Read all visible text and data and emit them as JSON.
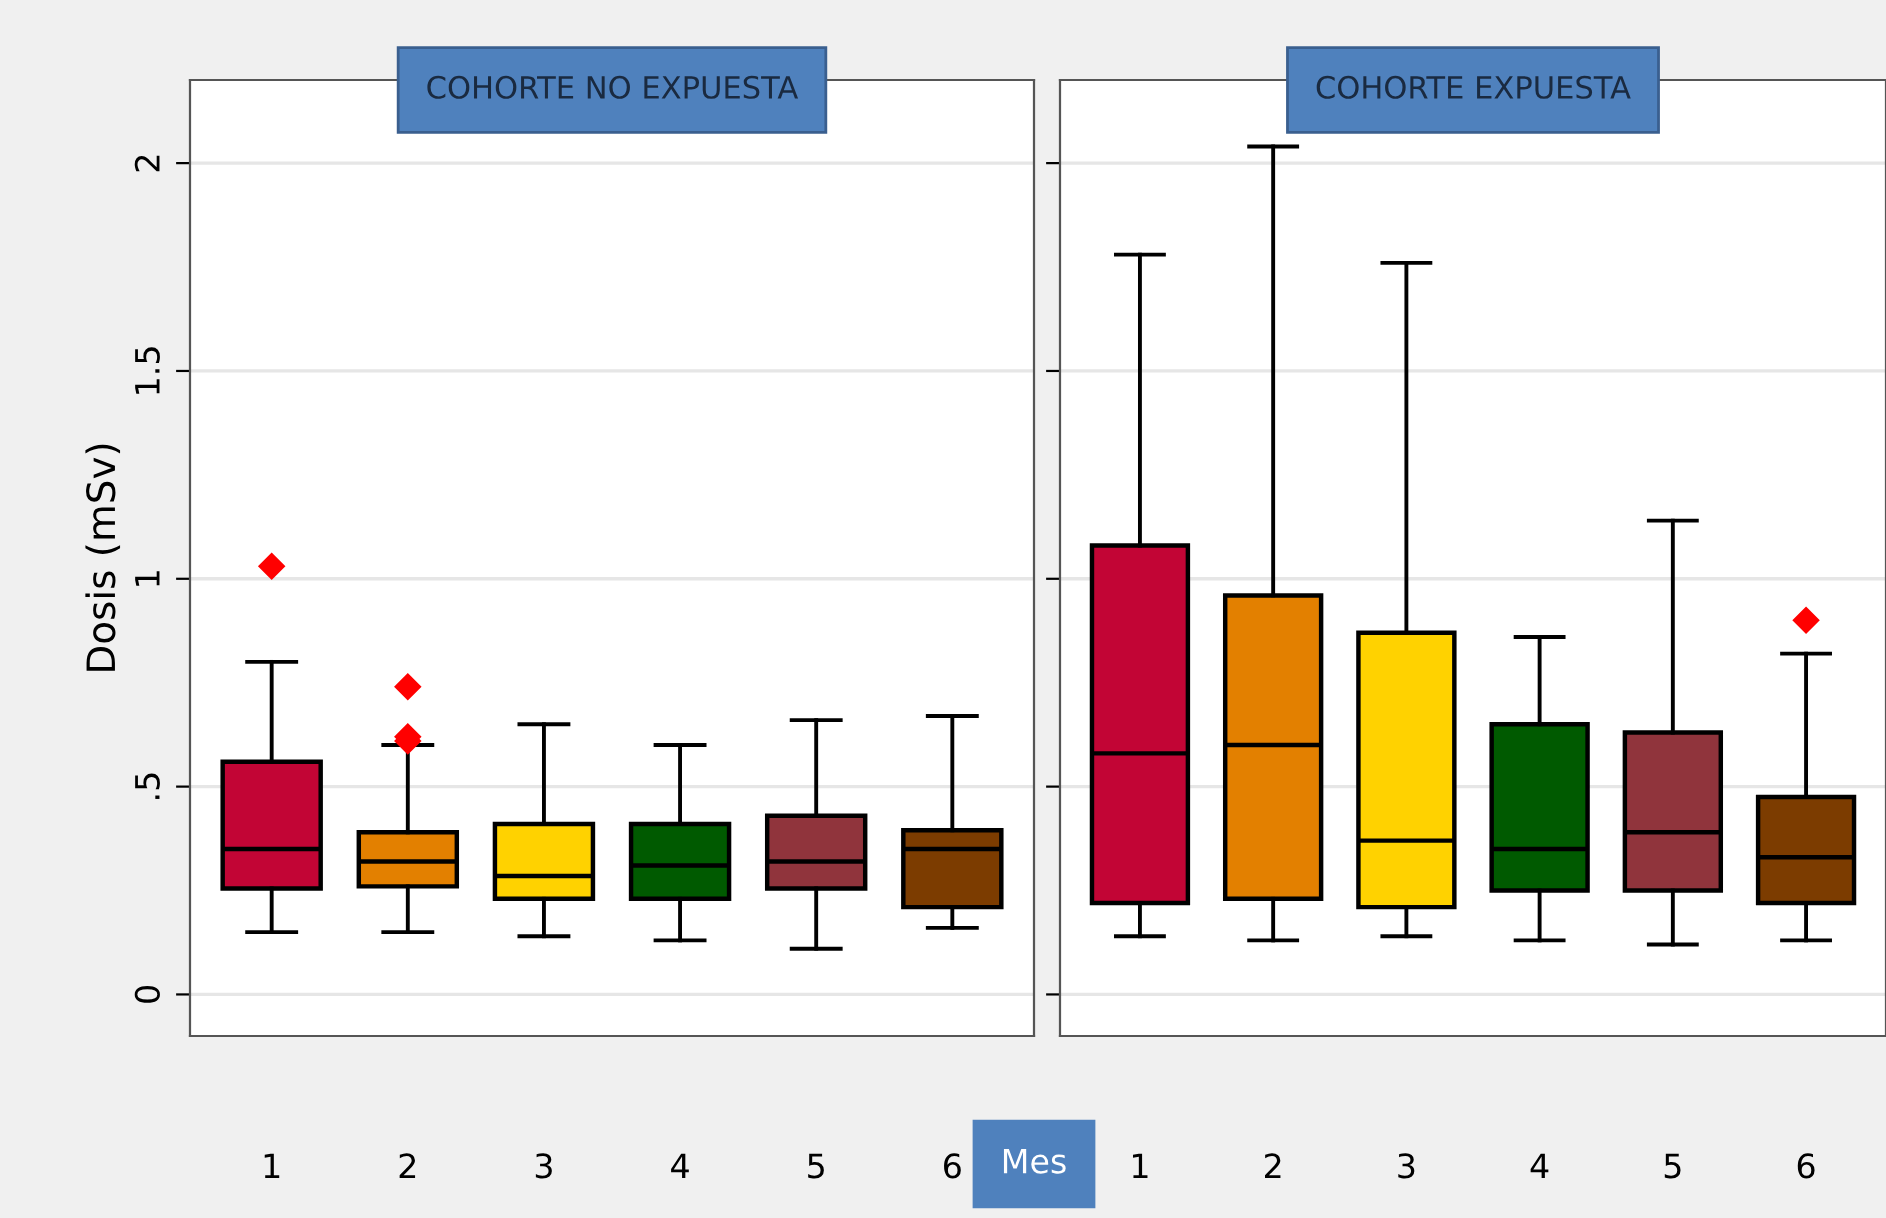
{
  "chart_data": [
    {
      "type": "box",
      "title": "COHORTE NO EXPUESTA",
      "ylabel": "Dosis (mSv)",
      "xlabel": "Mes",
      "categories": [
        "1",
        "2",
        "3",
        "4",
        "5",
        "6"
      ],
      "colors": [
        "#c20535",
        "#e38000",
        "#ffd200",
        "#005a00",
        "#90343c",
        "#7c3c00"
      ],
      "boxes": [
        {
          "low": 0.15,
          "q1": 0.255,
          "median": 0.35,
          "q3": 0.56,
          "high": 0.8,
          "outliers": [
            1.03
          ]
        },
        {
          "low": 0.15,
          "q1": 0.26,
          "median": 0.32,
          "q3": 0.39,
          "high": 0.6,
          "outliers": [
            0.74,
            0.62,
            0.61
          ]
        },
        {
          "low": 0.14,
          "q1": 0.23,
          "median": 0.285,
          "q3": 0.41,
          "high": 0.65
        },
        {
          "low": 0.13,
          "q1": 0.23,
          "median": 0.31,
          "q3": 0.41,
          "high": 0.6
        },
        {
          "low": 0.11,
          "q1": 0.255,
          "median": 0.32,
          "q3": 0.43,
          "high": 0.66
        },
        {
          "low": 0.16,
          "q1": 0.21,
          "median": 0.35,
          "q3": 0.395,
          "high": 0.67
        }
      ],
      "ylim": [
        -0.1,
        2.2
      ],
      "yticks": [
        0,
        {
          "value": 0.5,
          "label": ".5"
        },
        1,
        1.5,
        2
      ],
      "grid": "y",
      "marker": "diamond"
    },
    {
      "type": "box",
      "title": "COHORTE EXPUESTA",
      "categories": [
        "1",
        "2",
        "3",
        "4",
        "5",
        "6"
      ],
      "colors": [
        "#c20535",
        "#e38000",
        "#ffd200",
        "#005a00",
        "#90343c",
        "#7c3c00"
      ],
      "boxes": [
        {
          "low": 0.14,
          "q1": 0.22,
          "median": 0.58,
          "q3": 1.08,
          "high": 1.78
        },
        {
          "low": 0.13,
          "q1": 0.23,
          "median": 0.6,
          "q3": 0.96,
          "high": 2.04
        },
        {
          "low": 0.14,
          "q1": 0.21,
          "median": 0.37,
          "q3": 0.87,
          "high": 1.76
        },
        {
          "low": 0.13,
          "q1": 0.25,
          "median": 0.35,
          "q3": 0.65,
          "high": 0.86
        },
        {
          "low": 0.12,
          "q1": 0.25,
          "median": 0.39,
          "q3": 0.63,
          "high": 1.14
        },
        {
          "low": 0.13,
          "q1": 0.22,
          "median": 0.33,
          "q3": 0.475,
          "high": 0.82,
          "outliers": [
            0.9
          ]
        }
      ],
      "ylim": [
        -0.1,
        2.2
      ],
      "yticks": [
        0,
        0.5,
        1,
        1.5,
        2
      ],
      "grid": "y",
      "marker": "diamond",
      "tick_labels": "x"
    }
  ]
}
